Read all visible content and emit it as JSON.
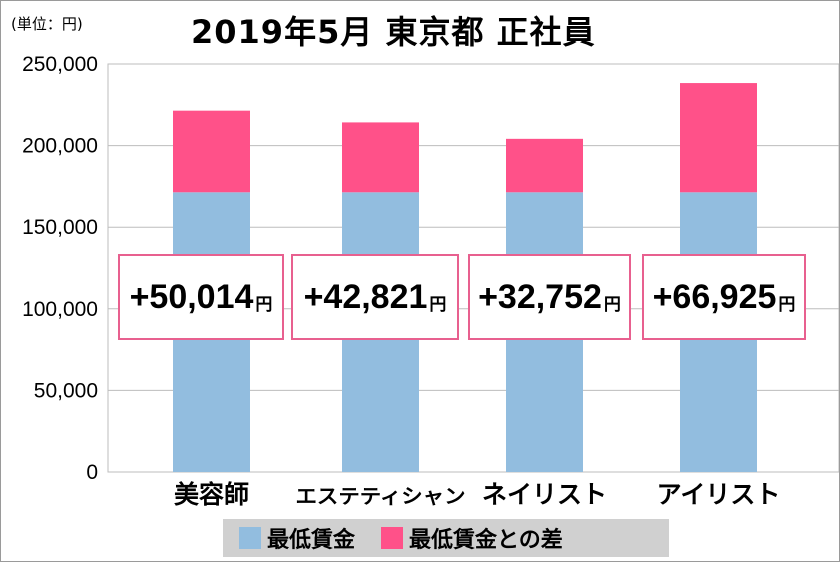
{
  "chart_data": {
    "type": "bar",
    "stacked": true,
    "title": "2019年5月 東京都 正社員",
    "unit_label": "(単位：円)",
    "categories": [
      "美容師",
      "エステティシャン",
      "ネイリスト",
      "アイリスト"
    ],
    "series": [
      {
        "name": "最低賃金",
        "color": "#92bddf",
        "values": [
          171390,
          171390,
          171390,
          171390
        ]
      },
      {
        "name": "最低賃金との差",
        "color": "#ff5189",
        "values": [
          50014,
          42821,
          32752,
          66925
        ]
      }
    ],
    "data_labels": [
      "+50,014",
      "+42,821",
      "+32,752",
      "+66,925"
    ],
    "data_label_unit": "円",
    "ylim": [
      0,
      250000
    ],
    "yticks": [
      "0",
      "50,000",
      "100,000",
      "150,000",
      "200,000",
      "250,000"
    ],
    "grid": true,
    "legend_position": "bottom"
  }
}
